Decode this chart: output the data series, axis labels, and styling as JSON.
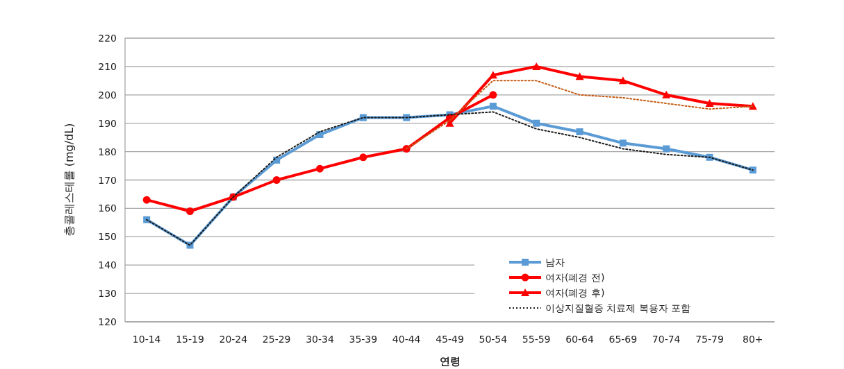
{
  "chart_data": {
    "type": "line",
    "xlabel": "연령",
    "ylabel": "총콜레스테롤 (mg/dL)",
    "categories": [
      "10-14",
      "15-19",
      "20-24",
      "25-29",
      "30-34",
      "35-39",
      "40-44",
      "45-49",
      "50-54",
      "55-59",
      "60-64",
      "65-69",
      "70-74",
      "75-79",
      "80+"
    ],
    "ylim": [
      120,
      220
    ],
    "yticks": [
      120,
      130,
      140,
      150,
      160,
      170,
      180,
      190,
      200,
      210,
      220
    ],
    "grid": "y",
    "legend": "bottom right",
    "series": [
      {
        "name": "남자",
        "color": "#5b9bd5",
        "marker": "square",
        "line_style": "solid",
        "values": [
          156,
          147,
          164,
          177,
          186,
          192,
          192,
          193,
          196,
          190,
          187,
          183,
          181,
          178,
          173.5
        ]
      },
      {
        "name": "여자(폐경 전)",
        "color": "#ff0000",
        "marker": "circle",
        "line_style": "solid",
        "values": [
          163,
          159,
          164,
          170,
          174,
          178,
          181,
          192,
          200,
          null,
          null,
          null,
          null,
          null,
          null
        ]
      },
      {
        "name": "여자(폐경 후)",
        "color": "#ff0000",
        "marker": "triangle",
        "line_style": "solid",
        "values": [
          null,
          null,
          null,
          null,
          null,
          null,
          null,
          190,
          207,
          210,
          206.5,
          205,
          200,
          197,
          196
        ]
      },
      {
        "name": "이상지질혈증 치료제 복용자 포함",
        "color": "#1a1a1a",
        "marker": "none",
        "line_style": "dotted",
        "values": [
          156,
          147,
          164,
          178,
          187,
          192,
          192,
          193,
          194,
          188,
          185,
          181,
          179,
          178,
          173.5
        ]
      },
      {
        "color": "#c55a11",
        "marker": "none",
        "line_style": "dotted",
        "values": [
          null,
          null,
          null,
          null,
          null,
          null,
          181,
          191,
          205,
          205,
          200,
          199,
          197,
          195,
          196
        ]
      }
    ]
  }
}
